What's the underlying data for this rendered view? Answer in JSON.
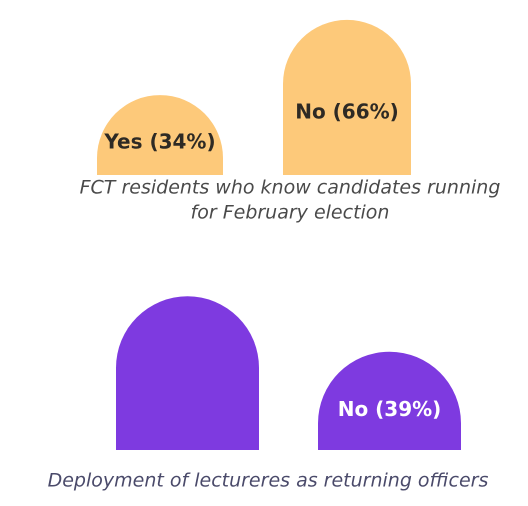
{
  "chart_data": [
    {
      "type": "arch-bar",
      "subtitle_lines": [
        "FCT residents who know candidates running",
        "for February election"
      ],
      "values": [
        34,
        66
      ],
      "value_labels": [
        "Yes (34%)",
        "No (66%)"
      ],
      "color": "#fdc97a",
      "label_color": "#2e2a24",
      "caption_color": "#4a4a4a"
    },
    {
      "type": "arch-bar",
      "subtitle_lines": [
        "Deployment of lectureres as returning officers"
      ],
      "values": [
        61,
        39
      ],
      "value_labels": [
        null,
        "No (39%)"
      ],
      "color": "#7e3ae0",
      "label_color": "#ffffff",
      "caption_color": "#4a4a6a"
    }
  ]
}
